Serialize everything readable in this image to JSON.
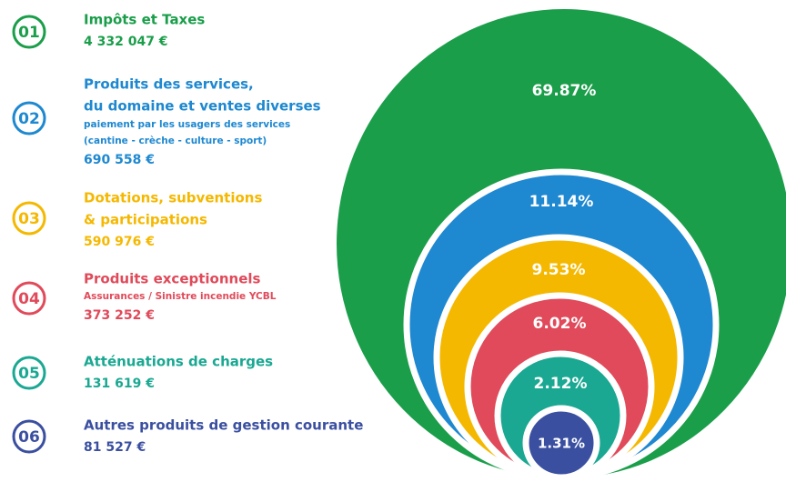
{
  "items": [
    {
      "number": "01",
      "title": [
        "Impôts et Taxes"
      ],
      "subtitle": [],
      "amount": "4 332 047 €",
      "percent": "69.87%",
      "color": "#1a9e4a"
    },
    {
      "number": "02",
      "title": [
        "Produits des services,",
        "du domaine et ventes diverses"
      ],
      "subtitle": [
        "paiement par les usagers des services",
        "(cantine - crèche - culture - sport)"
      ],
      "amount": "690 558 €",
      "percent": "11.14%",
      "color": "#1e88d0"
    },
    {
      "number": "03",
      "title": [
        "Dotations, subventions",
        "& participations"
      ],
      "subtitle": [],
      "amount": "590 976 €",
      "percent": "9.53%",
      "color": "#f5b800"
    },
    {
      "number": "04",
      "title": [
        "Produits exceptionnels"
      ],
      "subtitle": [
        "Assurances / Sinistre incendie YCBL"
      ],
      "amount": "373 252 €",
      "percent": "6.02%",
      "color": "#e04a5a"
    },
    {
      "number": "05",
      "title": [
        "Atténuations de charges"
      ],
      "subtitle": [],
      "amount": "131 619 €",
      "percent": "2.12%",
      "color": "#1aa892"
    },
    {
      "number": "06",
      "title": [
        "Autres produits de gestion courante"
      ],
      "subtitle": [],
      "amount": "81 527 €",
      "percent": "1.31%",
      "color": "#3a4fa0"
    }
  ]
}
